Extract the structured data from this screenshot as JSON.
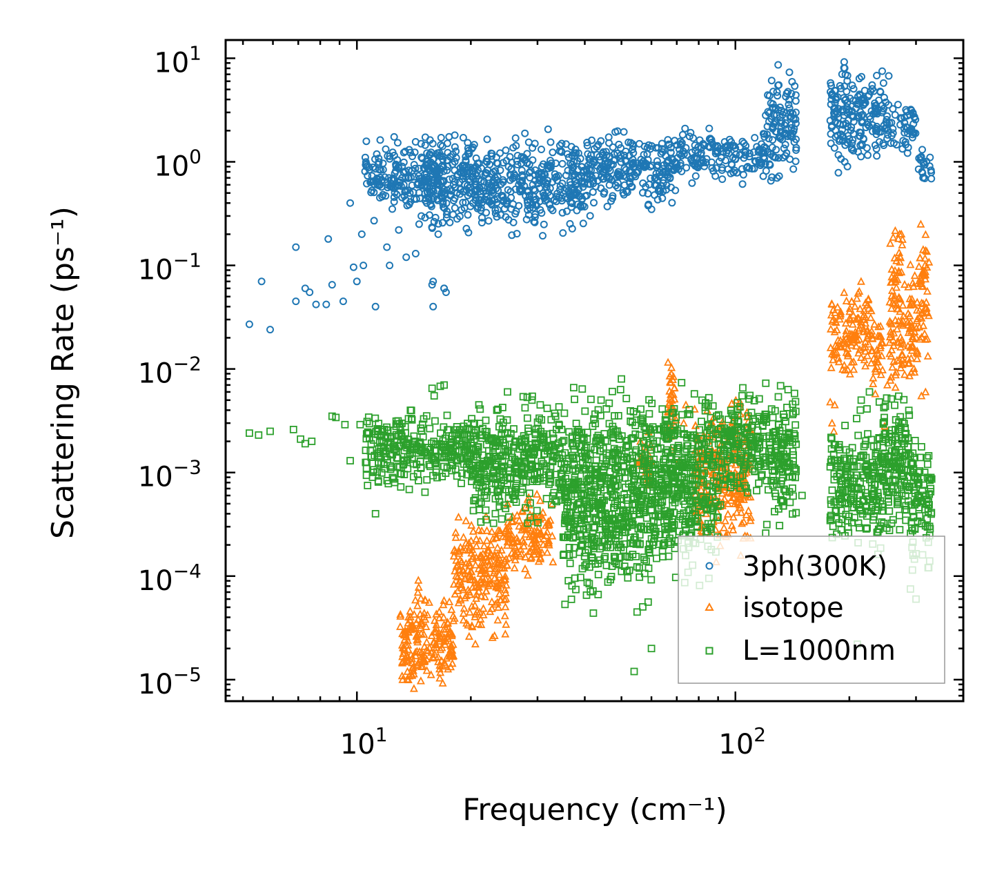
{
  "chart_data": {
    "type": "scatter",
    "xscale": "log",
    "yscale": "log",
    "xlim": [
      4.5,
      400
    ],
    "ylim": [
      6.2e-06,
      15
    ],
    "xlabel": "Frequency (cm⁻¹)",
    "ylabel": "Scattering Rate (ps⁻¹)",
    "x_ticks": [
      {
        "value": 10,
        "base": "10",
        "exp": "1"
      },
      {
        "value": 100,
        "base": "10",
        "exp": "2"
      }
    ],
    "y_ticks": [
      {
        "value": 10,
        "base": "10",
        "exp": "1"
      },
      {
        "value": 1,
        "base": "10",
        "exp": "0"
      },
      {
        "value": 0.1,
        "base": "10",
        "exp": "−1"
      },
      {
        "value": 0.01,
        "base": "10",
        "exp": "−2"
      },
      {
        "value": 0.001,
        "base": "10",
        "exp": "−3"
      },
      {
        "value": 0.0001,
        "base": "10",
        "exp": "−4"
      },
      {
        "value": 1e-05,
        "base": "10",
        "exp": "−5"
      }
    ],
    "legend_position": "lower-right",
    "series": [
      {
        "name": "3ph(300K)",
        "marker": "circle",
        "color": "#1f77b4",
        "x": [
          5.2,
          5.6,
          5.9,
          6.9,
          7.3,
          7.5,
          7.8,
          8.4,
          8.6,
          9.2,
          9.6,
          10.0,
          10.3,
          10.4,
          10.6,
          10.9,
          11.1,
          11.5,
          12.0,
          12.4,
          12.9,
          13.3,
          13.8,
          14.3,
          14.8,
          15.3,
          15.9,
          16.4,
          17.0,
          17.2,
          6.9,
          8.3,
          9.8,
          11.2,
          12.2,
          13.5,
          14.6,
          15.8,
          17.0,
          15.9
        ],
        "values": [
          0.027,
          0.07,
          0.024,
          0.15,
          0.06,
          0.055,
          0.042,
          0.18,
          0.065,
          0.045,
          0.4,
          0.07,
          0.2,
          0.1,
          0.95,
          0.65,
          0.27,
          0.45,
          0.15,
          0.35,
          0.22,
          0.6,
          0.5,
          0.13,
          0.3,
          0.4,
          0.07,
          0.2,
          0.06,
          0.055,
          0.045,
          0.042,
          0.096,
          0.04,
          0.1,
          0.12,
          0.25,
          0.065,
          0.06,
          0.04
        ],
        "clouds": [
          {
            "x0": 10.5,
            "x1": 17,
            "ylo": 0.45,
            "yhi": 1.25
          },
          {
            "x0": 15,
            "x1": 40,
            "ylo": 0.3,
            "yhi": 1.3
          },
          {
            "x0": 40,
            "x1": 70,
            "ylo": 0.45,
            "yhi": 1.45
          },
          {
            "x0": 70,
            "x1": 120,
            "ylo": 0.8,
            "yhi": 1.8
          },
          {
            "x0": 120,
            "x1": 145,
            "ylo": 1.0,
            "yhi": 5.0
          },
          {
            "x0": 178,
            "x1": 215,
            "ylo": 1.2,
            "yhi": 6.5
          },
          {
            "x0": 215,
            "x1": 260,
            "ylo": 1.5,
            "yhi": 5.5
          },
          {
            "x0": 260,
            "x1": 300,
            "ylo": 1.4,
            "yhi": 3.2
          },
          {
            "x0": 300,
            "x1": 330,
            "ylo": 0.7,
            "yhi": 1.2
          }
        ]
      },
      {
        "name": "isotope",
        "marker": "triangle",
        "color": "#ff7f0e",
        "x": [
          13.2,
          13.6,
          14.0,
          14.5,
          15.0,
          15.4,
          16.0,
          16.5,
          17.0,
          71,
          73,
          74,
          178,
          180,
          182,
          183,
          248,
          252,
          310,
          318
        ],
        "values": [
          1e-05,
          1.2e-05,
          1.1e-05,
          1.4e-05,
          1.6e-05,
          1.9e-05,
          2.3e-05,
          2.8e-05,
          3.4e-05,
          0.0013,
          0.003,
          0.0045,
          0.0048,
          0.003,
          0.0025,
          0.0045,
          0.0028,
          0.007,
          0.0055,
          0.006
        ],
        "clouds": [
          {
            "x0": 13,
            "x1": 18,
            "ylo": 1e-05,
            "yhi": 5e-05
          },
          {
            "x0": 18,
            "x1": 25,
            "ylo": 4e-05,
            "yhi": 0.00025
          },
          {
            "x0": 25,
            "x1": 33,
            "ylo": 0.00013,
            "yhi": 0.00045
          },
          {
            "x0": 55,
            "x1": 60,
            "ylo": 0.0008,
            "yhi": 0.002
          },
          {
            "x0": 66,
            "x1": 70,
            "ylo": 0.002,
            "yhi": 0.01
          },
          {
            "x0": 78,
            "x1": 110,
            "ylo": 0.0003,
            "yhi": 0.003
          },
          {
            "x0": 178,
            "x1": 205,
            "ylo": 0.01,
            "yhi": 0.04
          },
          {
            "x0": 205,
            "x1": 230,
            "ylo": 0.012,
            "yhi": 0.05
          },
          {
            "x0": 230,
            "x1": 245,
            "ylo": 0.007,
            "yhi": 0.025
          },
          {
            "x0": 255,
            "x1": 280,
            "ylo": 0.01,
            "yhi": 0.13
          },
          {
            "x0": 285,
            "x1": 305,
            "ylo": 0.008,
            "yhi": 0.06
          },
          {
            "x0": 305,
            "x1": 325,
            "ylo": 0.02,
            "yhi": 0.2
          }
        ]
      },
      {
        "name": "L=1000nm",
        "marker": "square",
        "color": "#2ca02c",
        "x": [
          5.2,
          5.5,
          5.9,
          6.8,
          7.1,
          7.3,
          7.6,
          8.6,
          8.8,
          9.3,
          9.6,
          10.2,
          10.6,
          11.0,
          11.2,
          15.8,
          16.0,
          16.6,
          17.0,
          21.0,
          25.0,
          27.5,
          29.0,
          30.5,
          33.5,
          54,
          55,
          60,
          95,
          150,
          210,
          215,
          226,
          240,
          290,
          300
        ],
        "values": [
          0.0024,
          0.0023,
          0.0025,
          0.0026,
          0.0021,
          0.0019,
          0.002,
          0.0035,
          0.0034,
          0.0029,
          0.0013,
          0.0029,
          0.0011,
          0.0009,
          0.0004,
          0.0065,
          0.0055,
          0.0068,
          0.007,
          0.0045,
          0.006,
          0.0054,
          0.005,
          0.0045,
          0.0035,
          1.2e-05,
          4.5e-05,
          2e-05,
          0.0013,
          0.0006,
          2.2e-05,
          0.005,
          0.006,
          0.0048,
          7.5e-05,
          6e-05
        ],
        "clouds": [
          {
            "x0": 10.5,
            "x1": 20,
            "ylo": 0.0009,
            "yhi": 0.003
          },
          {
            "x0": 20,
            "x1": 35,
            "ylo": 0.0005,
            "yhi": 0.003
          },
          {
            "x0": 35,
            "x1": 60,
            "ylo": 0.00012,
            "yhi": 0.003
          },
          {
            "x0": 60,
            "x1": 90,
            "ylo": 0.0002,
            "yhi": 0.0035
          },
          {
            "x0": 90,
            "x1": 120,
            "ylo": 0.0008,
            "yhi": 0.004
          },
          {
            "x0": 120,
            "x1": 145,
            "ylo": 0.0005,
            "yhi": 0.004
          },
          {
            "x0": 178,
            "x1": 245,
            "ylo": 0.0003,
            "yhi": 0.002
          },
          {
            "x0": 245,
            "x1": 290,
            "ylo": 0.0004,
            "yhi": 0.004
          },
          {
            "x0": 290,
            "x1": 330,
            "ylo": 0.0002,
            "yhi": 0.0015
          }
        ]
      }
    ]
  }
}
